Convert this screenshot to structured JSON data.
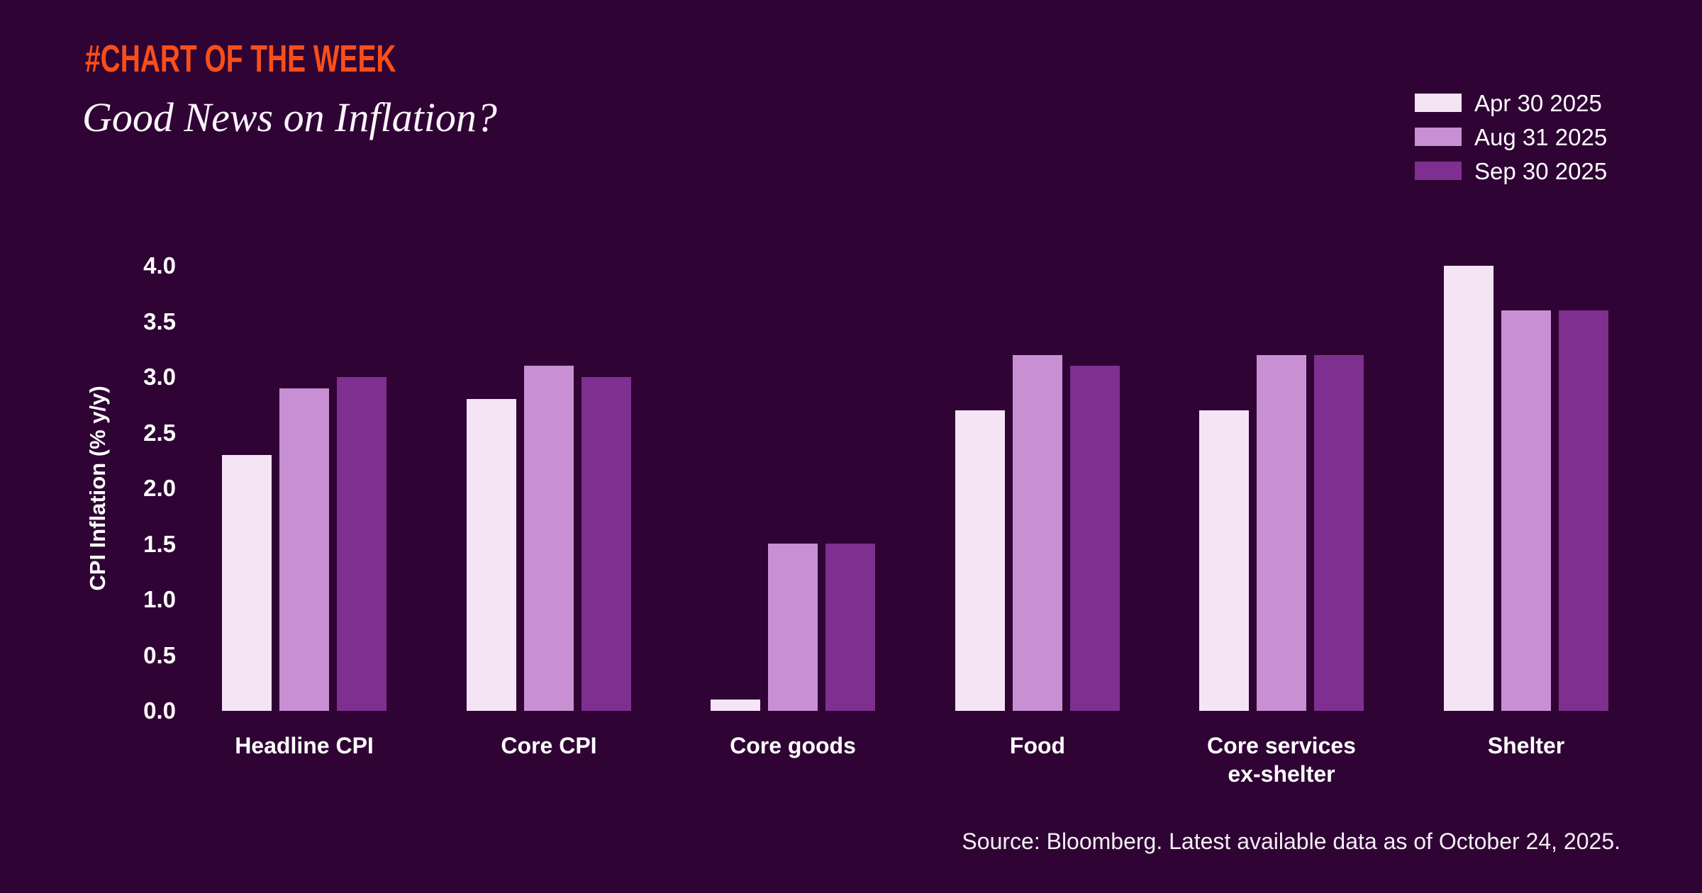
{
  "page": {
    "background_color": "#2f0434",
    "accent_orange": "#fa4e19"
  },
  "header": {
    "eyebrow": "#CHART OF THE WEEK",
    "title": "Good News on Inflation?"
  },
  "chart_data": {
    "type": "bar",
    "title": "Good News on Inflation?",
    "categories": [
      "Headline CPI",
      "Core CPI",
      "Core goods",
      "Food",
      "Core services\nex-shelter",
      "Shelter"
    ],
    "series": [
      {
        "name": "Apr 30 2025",
        "color": "#f5e4f6",
        "values": [
          2.3,
          2.8,
          0.1,
          2.7,
          2.7,
          4.0
        ]
      },
      {
        "name": "Aug 31 2025",
        "color": "#c88fd2",
        "values": [
          2.9,
          3.1,
          1.5,
          3.2,
          3.2,
          3.6
        ]
      },
      {
        "name": "Sep 30 2025",
        "color": "#7e2f90",
        "values": [
          3.0,
          3.0,
          1.5,
          3.1,
          3.2,
          3.6
        ]
      }
    ],
    "xlabel": "",
    "ylabel": "CPI Inflation (% y/y)",
    "ylim": [
      0,
      4.0
    ],
    "tick_step": 0.5,
    "yticks": [
      "0.0",
      "0.5",
      "1.0",
      "1.5",
      "2.0",
      "2.5",
      "3.0",
      "3.5",
      "4.0"
    ],
    "grid": false,
    "legend_position": "top-right"
  },
  "footer": {
    "source": "Source: Bloomberg. Latest available data as of October 24, 2025."
  }
}
